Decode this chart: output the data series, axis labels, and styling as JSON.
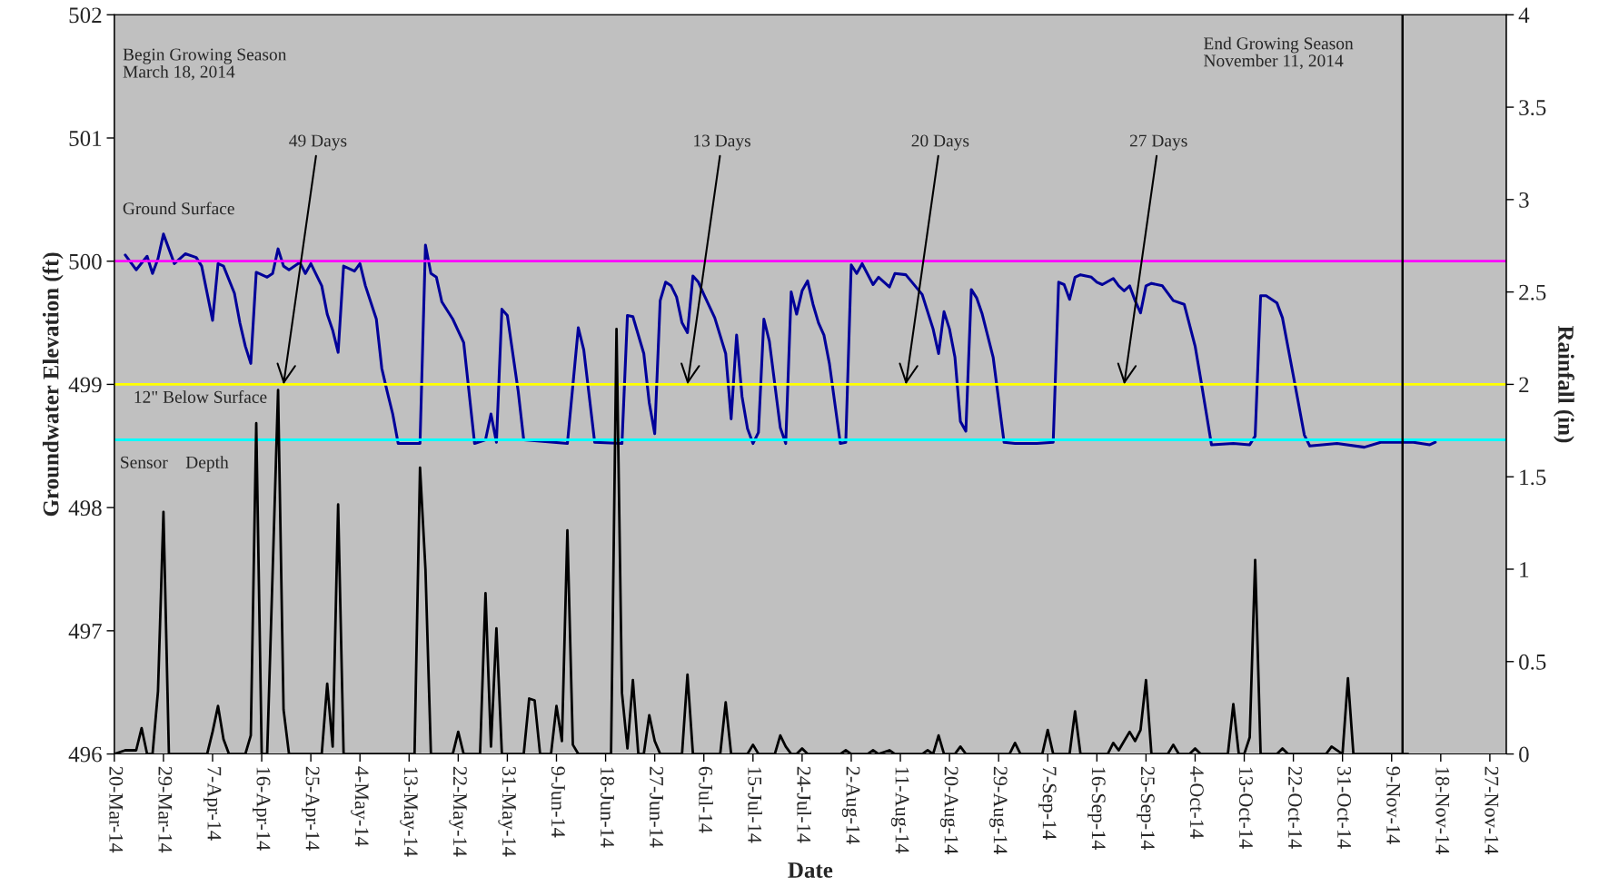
{
  "chart_data": {
    "type": "line",
    "xlabel": "Date",
    "ylabel": "Groundwater Elevation (ft)",
    "y2label": "Rainfall (in)",
    "xlim": [
      "2014-03-20",
      "2014-11-30"
    ],
    "xticks": [
      {
        "value": "2014-03-20",
        "label": "20-Mar-14"
      },
      {
        "value": "2014-03-29",
        "label": "29-Mar-14"
      },
      {
        "value": "2014-04-07",
        "label": "7-Apr-14"
      },
      {
        "value": "2014-04-16",
        "label": "16-Apr-14"
      },
      {
        "value": "2014-04-25",
        "label": "25-Apr-14"
      },
      {
        "value": "2014-05-04",
        "label": "4-May-14"
      },
      {
        "value": "2014-05-13",
        "label": "13-May-14"
      },
      {
        "value": "2014-05-22",
        "label": "22-May-14"
      },
      {
        "value": "2014-05-31",
        "label": "31-May-14"
      },
      {
        "value": "2014-06-09",
        "label": "9-Jun-14"
      },
      {
        "value": "2014-06-18",
        "label": "18-Jun-14"
      },
      {
        "value": "2014-06-27",
        "label": "27-Jun-14"
      },
      {
        "value": "2014-07-06",
        "label": "6-Jul-14"
      },
      {
        "value": "2014-07-15",
        "label": "15-Jul-14"
      },
      {
        "value": "2014-07-24",
        "label": "24-Jul-14"
      },
      {
        "value": "2014-08-02",
        "label": "2-Aug-14"
      },
      {
        "value": "2014-08-11",
        "label": "11-Aug-14"
      },
      {
        "value": "2014-08-20",
        "label": "20-Aug-14"
      },
      {
        "value": "2014-08-29",
        "label": "29-Aug-14"
      },
      {
        "value": "2014-09-07",
        "label": "7-Sep-14"
      },
      {
        "value": "2014-09-16",
        "label": "16-Sep-14"
      },
      {
        "value": "2014-09-25",
        "label": "25-Sep-14"
      },
      {
        "value": "2014-10-04",
        "label": "4-Oct-14"
      },
      {
        "value": "2014-10-13",
        "label": "13-Oct-14"
      },
      {
        "value": "2014-10-22",
        "label": "22-Oct-14"
      },
      {
        "value": "2014-10-31",
        "label": "31-Oct-14"
      },
      {
        "value": "2014-11-09",
        "label": "9-Nov-14"
      },
      {
        "value": "2014-11-18",
        "label": "18-Nov-14"
      },
      {
        "value": "2014-11-27",
        "label": "27-Nov-14"
      }
    ],
    "ylim": [
      496,
      502
    ],
    "yticks": [
      496,
      497,
      498,
      499,
      500,
      501,
      502
    ],
    "y2lim": [
      0,
      4
    ],
    "y2ticks": [
      0,
      0.5,
      1,
      1.5,
      2,
      2.5,
      3,
      3.5,
      4
    ],
    "grid": false,
    "marker": "none",
    "line_style": "solid",
    "series": [
      {
        "color": "#000099",
        "x": [
          "2014-03-22",
          "2014-03-24",
          "2014-03-26",
          "2014-03-27",
          "2014-03-28",
          "2014-03-29",
          "2014-03-31",
          "2014-04-02",
          "2014-04-04",
          "2014-04-05",
          "2014-04-07",
          "2014-04-08",
          "2014-04-09",
          "2014-04-11",
          "2014-04-12",
          "2014-04-13",
          "2014-04-14",
          "2014-04-15",
          "2014-04-17",
          "2014-04-18",
          "2014-04-19",
          "2014-04-20",
          "2014-04-21",
          "2014-04-23",
          "2014-04-24",
          "2014-04-25",
          "2014-04-27",
          "2014-04-28",
          "2014-04-29",
          "2014-04-30",
          "2014-05-01",
          "2014-05-03",
          "2014-05-04",
          "2014-05-05",
          "2014-05-07",
          "2014-05-08",
          "2014-05-09",
          "2014-05-10",
          "2014-05-11",
          "2014-05-15",
          "2014-05-16",
          "2014-05-17",
          "2014-05-18",
          "2014-05-19",
          "2014-05-21",
          "2014-05-23",
          "2014-05-25",
          "2014-05-27",
          "2014-05-28",
          "2014-05-29",
          "2014-05-30",
          "2014-05-31",
          "2014-06-02",
          "2014-06-03",
          "2014-06-11",
          "2014-06-13",
          "2014-06-14",
          "2014-06-16",
          "2014-06-21",
          "2014-06-22",
          "2014-06-23",
          "2014-06-25",
          "2014-06-26",
          "2014-06-27",
          "2014-06-28",
          "2014-06-29",
          "2014-06-30",
          "2014-07-01",
          "2014-07-02",
          "2014-07-03",
          "2014-07-04",
          "2014-07-05",
          "2014-07-06",
          "2014-07-08",
          "2014-07-10",
          "2014-07-11",
          "2014-07-12",
          "2014-07-13",
          "2014-07-14",
          "2014-07-15",
          "2014-07-16",
          "2014-07-17",
          "2014-07-18",
          "2014-07-20",
          "2014-07-21",
          "2014-07-22",
          "2014-07-23",
          "2014-07-24",
          "2014-07-25",
          "2014-07-26",
          "2014-07-27",
          "2014-07-28",
          "2014-07-29",
          "2014-07-31",
          "2014-08-01",
          "2014-08-02",
          "2014-08-03",
          "2014-08-04",
          "2014-08-06",
          "2014-08-07",
          "2014-08-09",
          "2014-08-10",
          "2014-08-12",
          "2014-08-15",
          "2014-08-17",
          "2014-08-18",
          "2014-08-19",
          "2014-08-20",
          "2014-08-21",
          "2014-08-22",
          "2014-08-23",
          "2014-08-24",
          "2014-08-25",
          "2014-08-26",
          "2014-08-28",
          "2014-08-30",
          "2014-09-01",
          "2014-09-05",
          "2014-09-08",
          "2014-09-09",
          "2014-09-10",
          "2014-09-11",
          "2014-09-12",
          "2014-09-13",
          "2014-09-15",
          "2014-09-16",
          "2014-09-17",
          "2014-09-19",
          "2014-09-20",
          "2014-09-21",
          "2014-09-22",
          "2014-09-23",
          "2014-09-24",
          "2014-09-25",
          "2014-09-26",
          "2014-09-28",
          "2014-09-30",
          "2014-10-02",
          "2014-10-04",
          "2014-10-05",
          "2014-10-07",
          "2014-10-11",
          "2014-10-14",
          "2014-10-15",
          "2014-10-16",
          "2014-10-17",
          "2014-10-19",
          "2014-10-20",
          "2014-10-22",
          "2014-10-24",
          "2014-10-25",
          "2014-10-30",
          "2014-11-04",
          "2014-11-07",
          "2014-11-13",
          "2014-11-16",
          "2014-11-17"
        ],
        "values": [
          500.05,
          499.93,
          500.04,
          499.9,
          500.02,
          500.22,
          499.98,
          500.06,
          500.03,
          499.96,
          499.52,
          499.98,
          499.96,
          499.74,
          499.5,
          499.31,
          499.17,
          499.91,
          499.87,
          499.9,
          500.1,
          499.96,
          499.93,
          499.99,
          499.9,
          499.98,
          499.8,
          499.57,
          499.44,
          499.26,
          499.96,
          499.92,
          499.98,
          499.8,
          499.53,
          499.13,
          498.94,
          498.76,
          498.52,
          498.52,
          500.13,
          499.9,
          499.87,
          499.67,
          499.53,
          499.34,
          498.52,
          498.55,
          498.76,
          498.53,
          499.61,
          499.56,
          498.94,
          498.55,
          498.52,
          499.46,
          499.28,
          498.53,
          498.52,
          499.56,
          499.55,
          499.25,
          498.85,
          498.6,
          499.68,
          499.83,
          499.8,
          499.71,
          499.5,
          499.42,
          499.88,
          499.83,
          499.73,
          499.54,
          499.25,
          498.72,
          499.4,
          498.9,
          498.64,
          498.52,
          498.61,
          499.53,
          499.35,
          498.65,
          498.52,
          499.75,
          499.57,
          499.76,
          499.84,
          499.65,
          499.5,
          499.4,
          499.17,
          498.52,
          498.53,
          499.97,
          499.9,
          499.98,
          499.81,
          499.87,
          499.79,
          499.9,
          499.89,
          499.73,
          499.45,
          499.25,
          499.59,
          499.45,
          499.22,
          498.7,
          498.62,
          499.77,
          499.7,
          499.57,
          499.22,
          498.53,
          498.52,
          498.52,
          498.53,
          499.83,
          499.81,
          499.69,
          499.87,
          499.89,
          499.87,
          499.83,
          499.81,
          499.86,
          499.8,
          499.76,
          499.8,
          499.68,
          499.58,
          499.8,
          499.82,
          499.8,
          499.68,
          499.65,
          499.31,
          499.05,
          498.51,
          498.52,
          498.51,
          498.58,
          499.72,
          499.72,
          499.66,
          499.54,
          499.07,
          498.59,
          498.5,
          498.52,
          498.49,
          498.53,
          498.53,
          498.51,
          498.53
        ]
      },
      {
        "axis": "y2",
        "color": "#000000",
        "x": [
          "2014-03-20",
          "2014-03-22",
          "2014-03-24",
          "2014-03-25",
          "2014-03-26",
          "2014-03-27",
          "2014-03-28",
          "2014-03-29",
          "2014-03-30",
          "2014-04-06",
          "2014-04-07",
          "2014-04-08",
          "2014-04-09",
          "2014-04-10",
          "2014-04-13",
          "2014-04-14",
          "2014-04-15",
          "2014-04-16",
          "2014-04-17",
          "2014-04-19",
          "2014-04-20",
          "2014-04-21",
          "2014-04-27",
          "2014-04-28",
          "2014-04-29",
          "2014-04-30",
          "2014-05-01",
          "2014-05-14",
          "2014-05-15",
          "2014-05-16",
          "2014-05-17",
          "2014-05-21",
          "2014-05-22",
          "2014-05-23",
          "2014-05-26",
          "2014-05-27",
          "2014-05-28",
          "2014-05-29",
          "2014-05-30",
          "2014-06-03",
          "2014-06-04",
          "2014-06-05",
          "2014-06-06",
          "2014-06-08",
          "2014-06-09",
          "2014-06-10",
          "2014-06-11",
          "2014-06-12",
          "2014-06-13",
          "2014-06-19",
          "2014-06-20",
          "2014-06-21",
          "2014-06-22",
          "2014-06-23",
          "2014-06-24",
          "2014-06-25",
          "2014-06-26",
          "2014-06-27",
          "2014-06-28",
          "2014-07-02",
          "2014-07-03",
          "2014-07-04",
          "2014-07-09",
          "2014-07-10",
          "2014-07-11",
          "2014-07-14",
          "2014-07-15",
          "2014-07-16",
          "2014-07-19",
          "2014-07-20",
          "2014-07-21",
          "2014-07-22",
          "2014-07-23",
          "2014-07-24",
          "2014-07-25",
          "2014-07-31",
          "2014-08-01",
          "2014-08-02",
          "2014-08-05",
          "2014-08-06",
          "2014-08-07",
          "2014-08-09",
          "2014-08-10",
          "2014-08-15",
          "2014-08-16",
          "2014-08-17",
          "2014-08-18",
          "2014-08-19",
          "2014-08-21",
          "2014-08-22",
          "2014-08-23",
          "2014-08-31",
          "2014-09-01",
          "2014-09-02",
          "2014-09-06",
          "2014-09-07",
          "2014-09-08",
          "2014-09-11",
          "2014-09-12",
          "2014-09-13",
          "2014-09-18",
          "2014-09-19",
          "2014-09-20",
          "2014-09-21",
          "2014-09-22",
          "2014-09-23",
          "2014-09-24",
          "2014-09-25",
          "2014-09-26",
          "2014-09-29",
          "2014-09-30",
          "2014-10-01",
          "2014-10-03",
          "2014-10-04",
          "2014-10-05",
          "2014-10-10",
          "2014-10-11",
          "2014-10-12",
          "2014-10-13",
          "2014-10-14",
          "2014-10-15",
          "2014-10-16",
          "2014-10-19",
          "2014-10-20",
          "2014-10-21",
          "2014-10-28",
          "2014-10-29",
          "2014-10-31",
          "2014-11-01",
          "2014-11-02",
          "2014-11-12"
        ],
        "values": [
          0,
          0.02,
          0.02,
          0.14,
          0,
          0,
          0.34,
          1.31,
          0,
          0,
          0.12,
          0.26,
          0.08,
          0,
          0,
          0.1,
          1.79,
          0,
          0,
          1.97,
          0.24,
          0,
          0,
          0.38,
          0.04,
          1.35,
          0,
          0,
          1.55,
          1.0,
          0,
          0,
          0.12,
          0,
          0,
          0.87,
          0.04,
          0.68,
          0,
          0,
          0.3,
          0.29,
          0,
          0,
          0.26,
          0.07,
          1.21,
          0.05,
          0,
          0,
          2.3,
          0.33,
          0.03,
          0.4,
          0,
          0,
          0.21,
          0.07,
          0,
          0,
          0.43,
          0,
          0,
          0.28,
          0,
          0,
          0.05,
          0,
          0,
          0.1,
          0.04,
          0,
          0,
          0.03,
          0,
          0,
          0.02,
          0,
          0,
          0.02,
          0,
          0.02,
          0,
          0,
          0.02,
          0,
          0.1,
          0,
          0,
          0.04,
          0,
          0,
          0.06,
          0,
          0,
          0.13,
          0,
          0,
          0.23,
          0,
          0,
          0.06,
          0.02,
          0.07,
          0.12,
          0.07,
          0.13,
          0.4,
          0,
          0,
          0.05,
          0,
          0,
          0.03,
          0,
          0,
          0.27,
          0,
          0,
          0.09,
          1.05,
          0,
          0,
          0.03,
          0,
          0,
          0.04,
          0,
          0.41,
          0,
          0
        ]
      }
    ],
    "ref_lines": [
      {
        "axis": "y",
        "value": 500,
        "label": "Ground Surface",
        "color": "#ff00ff"
      },
      {
        "axis": "y",
        "value": 499,
        "label": "12\" Below Surface",
        "color": "#ffff00"
      },
      {
        "axis": "y",
        "value": 498.55,
        "label": "Sensor    Depth",
        "color": "#00ffff"
      },
      {
        "axis": "x",
        "value": "2014-11-11",
        "label": "End Growing Season\nNovember 11, 2014",
        "color": "#000000"
      }
    ],
    "annotations": [
      "Begin Growing Season\nMarch 18, 2014",
      {
        "text": "49 Days",
        "x": "2014-04-20",
        "y": 499
      },
      {
        "text": "13 Days",
        "x": "2014-07-03",
        "y": 499
      },
      {
        "text": "20 Days",
        "x": "2014-08-12",
        "y": 499
      },
      {
        "text": "27 Days",
        "x": "2014-09-21",
        "y": 499
      }
    ]
  }
}
